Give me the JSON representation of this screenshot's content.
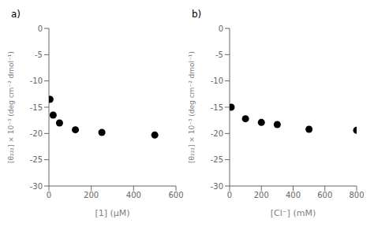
{
  "chart_data": [
    {
      "type": "scatter",
      "title": "a)",
      "x": [
        5,
        20,
        50,
        125,
        250,
        500
      ],
      "values": [
        -13.5,
        -16.5,
        -18.0,
        -19.3,
        -19.8,
        -20.3
      ],
      "color": "#000000",
      "x_label": "[1] (μM)",
      "y_label": "[θ₂₂₂] × 10⁻³ (deg cm⁻² dmol⁻¹)",
      "xlim": [
        0,
        600
      ],
      "xticks": [
        0,
        200,
        400,
        600
      ],
      "ylim": [
        -30,
        0
      ],
      "yticks": [
        0,
        -5,
        -10,
        -15,
        -20,
        -25,
        -30
      ],
      "grid": false
    },
    {
      "type": "scatter",
      "title": "b)",
      "x": [
        10,
        100,
        200,
        300,
        500,
        800
      ],
      "values": [
        -15.0,
        -17.2,
        -17.9,
        -18.3,
        -19.2,
        -19.4
      ],
      "color": "#000000",
      "x_label": "[Cl⁻] (mM)",
      "y_label": "[θ₂₂₂] × 10⁻³ (deg cm⁻² dmol⁻¹)",
      "xlim": [
        0,
        800
      ],
      "xticks": [
        0,
        200,
        400,
        600,
        800
      ],
      "ylim": [
        -30,
        0
      ],
      "yticks": [
        0,
        -5,
        -10,
        -15,
        -20,
        -25,
        -30
      ],
      "grid": false
    }
  ]
}
